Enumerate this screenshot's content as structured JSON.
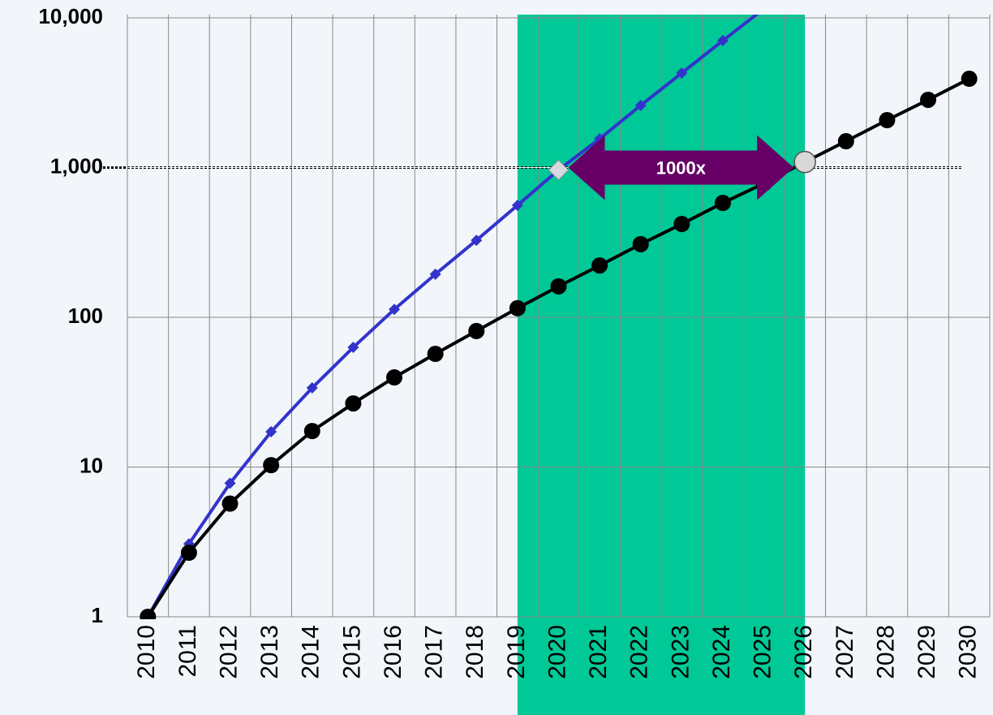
{
  "chart_data": {
    "type": "line",
    "categories": [
      "2010",
      "2011",
      "2012",
      "2013",
      "2014",
      "2015",
      "2016",
      "2017",
      "2018",
      "2019",
      "2020",
      "2021",
      "2022",
      "2023",
      "2024",
      "2025",
      "2026",
      "2027",
      "2028",
      "2029",
      "2030"
    ],
    "series": [
      {
        "color": "#3333cc",
        "marker": "diamond",
        "values": [
          1,
          3.07,
          7.8,
          17.2,
          33.8,
          63,
          113,
          194,
          327,
          560,
          964,
          1557,
          2600,
          4280,
          7050,
          11500,
          null,
          null,
          null,
          null,
          null
        ]
      },
      {
        "color": "#000000",
        "marker": "circle",
        "values": [
          1,
          2.68,
          5.7,
          10.3,
          17.4,
          26.6,
          39.7,
          57,
          81,
          115,
          161,
          222,
          308,
          420,
          581,
          784,
          1090,
          1500,
          2075,
          2836,
          3920
        ]
      }
    ],
    "log_scale": true,
    "ylim": [
      1,
      10000
    ],
    "yticks": [
      1,
      10,
      100,
      {
        "value": 1000,
        "label": "1,000"
      },
      {
        "value": 10000,
        "label": "10,000"
      }
    ],
    "grid": true,
    "reference_line": 1000,
    "highlight": {
      "from": "2019",
      "to": "2026",
      "color": "#00c896"
    },
    "annotation": {
      "text": "1000x",
      "from": "2020",
      "to": "2026",
      "color": "#660066"
    }
  }
}
